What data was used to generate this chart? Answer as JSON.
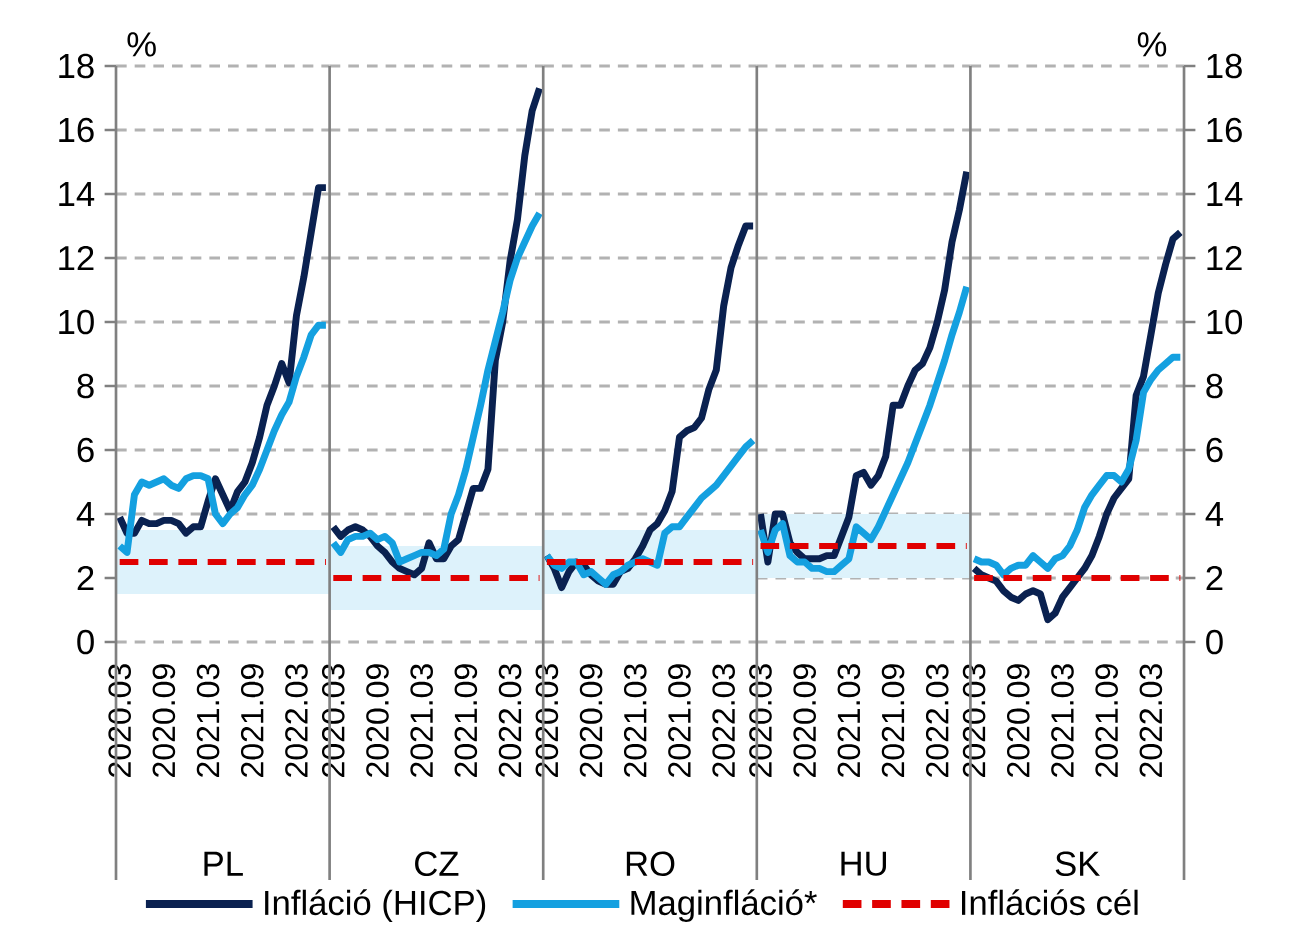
{
  "chart_data": [
    {
      "type": "line",
      "xlabel": "PL",
      "ylabel": "%",
      "legend": "bottom",
      "grid": "y",
      "ylim": [
        0,
        18
      ],
      "yticks": [
        0,
        2,
        4,
        6,
        8,
        10,
        12,
        14,
        16,
        18
      ],
      "categories": [
        "2020.03",
        null,
        null,
        null,
        null,
        null,
        "2020.09",
        null,
        null,
        null,
        null,
        null,
        "2021.03",
        null,
        null,
        null,
        null,
        null,
        "2021.09",
        null,
        null,
        null,
        null,
        null,
        "2022.03",
        null,
        null,
        null,
        null
      ],
      "bands": [
        {
          "axis": "y",
          "from": 1.5,
          "to": 3.5,
          "color": "#ddf2fb"
        }
      ],
      "series": [
        {
          "name": "Infláció (HICP)",
          "color": "#0a2150",
          "values": [
            3.9,
            3.4,
            3.4,
            3.8,
            3.7,
            3.7,
            3.8,
            3.8,
            3.7,
            3.4,
            3.6,
            3.6,
            4.4,
            5.1,
            4.6,
            4.1,
            4.7,
            5.0,
            5.6,
            6.4,
            7.4,
            8.0,
            8.7,
            8.1,
            10.2,
            11.4,
            12.8,
            14.2,
            14.2
          ]
        },
        {
          "name": "Maginfláció*",
          "color": "#14a0e0",
          "values": [
            3.0,
            2.8,
            4.6,
            5.0,
            4.9,
            5.0,
            5.1,
            4.9,
            4.8,
            5.1,
            5.2,
            5.2,
            5.1,
            4.0,
            3.7,
            4.0,
            4.2,
            4.6,
            4.9,
            5.4,
            6.0,
            6.6,
            7.1,
            7.5,
            8.3,
            8.9,
            9.6,
            9.9,
            9.9
          ]
        },
        {
          "name": "Inflációs cél",
          "color": "#e00000",
          "line_style": "dashed",
          "values": [
            2.5,
            2.5,
            2.5,
            2.5,
            2.5,
            2.5,
            2.5,
            2.5,
            2.5,
            2.5,
            2.5,
            2.5,
            2.5,
            2.5,
            2.5,
            2.5,
            2.5,
            2.5,
            2.5,
            2.5,
            2.5,
            2.5,
            2.5,
            2.5,
            2.5,
            2.5,
            2.5,
            2.5,
            2.5
          ]
        }
      ]
    },
    {
      "type": "line",
      "xlabel": "CZ",
      "grid": "y",
      "tick_labels": "x",
      "ylim": [
        0,
        18
      ],
      "yticks": [
        0,
        2,
        4,
        6,
        8,
        10,
        12,
        14,
        16,
        18
      ],
      "categories": [
        "2020.03",
        null,
        null,
        null,
        null,
        null,
        "2020.09",
        null,
        null,
        null,
        null,
        null,
        "2021.03",
        null,
        null,
        null,
        null,
        null,
        "2021.09",
        null,
        null,
        null,
        null,
        null,
        "2022.03",
        null,
        null,
        null,
        null
      ],
      "bands": [
        {
          "axis": "y",
          "from": 1,
          "to": 3,
          "color": "#ddf2fb"
        }
      ],
      "series": [
        {
          "color": "#0a2150",
          "values": [
            3.6,
            3.3,
            3.5,
            3.6,
            3.5,
            3.3,
            3.0,
            2.8,
            2.5,
            2.3,
            2.2,
            2.1,
            2.3,
            3.1,
            2.6,
            2.6,
            3.0,
            3.2,
            4.0,
            4.8,
            4.8,
            5.4,
            8.8,
            10.0,
            11.9,
            13.2,
            15.2,
            16.6,
            17.3
          ]
        },
        {
          "color": "#14a0e0",
          "values": [
            3.1,
            2.8,
            3.2,
            3.3,
            3.3,
            3.4,
            3.2,
            3.3,
            3.1,
            2.5,
            2.6,
            2.7,
            2.8,
            2.8,
            2.7,
            2.9,
            4.0,
            4.6,
            5.4,
            6.4,
            7.4,
            8.5,
            9.4,
            10.3,
            11.3,
            12.0,
            12.5,
            13.0,
            13.4
          ]
        },
        {
          "color": "#e00000",
          "line_style": "dashed",
          "values": [
            2,
            2,
            2,
            2,
            2,
            2,
            2,
            2,
            2,
            2,
            2,
            2,
            2,
            2,
            2,
            2,
            2,
            2,
            2,
            2,
            2,
            2,
            2,
            2,
            2,
            2,
            2,
            2,
            2
          ]
        }
      ]
    },
    {
      "type": "line",
      "xlabel": "RO",
      "grid": "y",
      "tick_labels": "x",
      "ylim": [
        0,
        18
      ],
      "yticks": [
        0,
        2,
        4,
        6,
        8,
        10,
        12,
        14,
        16,
        18
      ],
      "categories": [
        "2020.03",
        null,
        null,
        null,
        null,
        null,
        "2020.09",
        null,
        null,
        null,
        null,
        null,
        "2021.03",
        null,
        null,
        null,
        null,
        null,
        "2021.09",
        null,
        null,
        null,
        null,
        null,
        "2022.03",
        null,
        null,
        null,
        null
      ],
      "bands": [
        {
          "axis": "y",
          "from": 1.5,
          "to": 3.5,
          "color": "#ddf2fb"
        }
      ],
      "series": [
        {
          "color": "#0a2150",
          "values": [
            2.7,
            2.3,
            1.7,
            2.2,
            2.5,
            2.4,
            2.1,
            1.9,
            1.8,
            1.8,
            2.2,
            2.3,
            2.6,
            3.0,
            3.5,
            3.7,
            4.1,
            4.7,
            6.4,
            6.6,
            6.7,
            7.0,
            7.9,
            8.5,
            10.5,
            11.7,
            12.4,
            13.0,
            13.0
          ]
        },
        {
          "color": "#14a0e0",
          "values": [
            2.7,
            2.4,
            2.3,
            2.5,
            2.5,
            2.1,
            2.2,
            2.0,
            1.8,
            2.1,
            2.2,
            2.4,
            2.5,
            2.6,
            2.5,
            2.4,
            3.4,
            3.6,
            3.6,
            3.9,
            4.2,
            4.5,
            4.7,
            4.9,
            5.2,
            5.5,
            5.8,
            6.1,
            6.3
          ]
        },
        {
          "color": "#e00000",
          "line_style": "dashed",
          "values": [
            2.5,
            2.5,
            2.5,
            2.5,
            2.5,
            2.5,
            2.5,
            2.5,
            2.5,
            2.5,
            2.5,
            2.5,
            2.5,
            2.5,
            2.5,
            2.5,
            2.5,
            2.5,
            2.5,
            2.5,
            2.5,
            2.5,
            2.5,
            2.5,
            2.5,
            2.5,
            2.5,
            2.5,
            2.5
          ]
        }
      ]
    },
    {
      "type": "line",
      "xlabel": "HU",
      "grid": "y",
      "tick_labels": "x",
      "ylim": [
        0,
        18
      ],
      "yticks": [
        0,
        2,
        4,
        6,
        8,
        10,
        12,
        14,
        16,
        18
      ],
      "categories": [
        "2020.03",
        null,
        null,
        null,
        null,
        null,
        "2020.09",
        null,
        null,
        null,
        null,
        null,
        "2021.03",
        null,
        null,
        null,
        null,
        null,
        "2021.09",
        null,
        null,
        null,
        null,
        null,
        "2022.03",
        null,
        null,
        null,
        null
      ],
      "bands": [
        {
          "axis": "y",
          "from": 2,
          "to": 4,
          "color": "#ddf2fb"
        }
      ],
      "series": [
        {
          "color": "#0a2150",
          "values": [
            4.0,
            2.5,
            4.0,
            4.0,
            3.1,
            2.8,
            2.6,
            2.6,
            2.6,
            2.7,
            2.7,
            3.3,
            3.9,
            5.2,
            5.3,
            4.9,
            5.2,
            5.8,
            7.4,
            7.4,
            8.0,
            8.5,
            8.7,
            9.2,
            10.0,
            11.0,
            12.5,
            13.5,
            14.7
          ]
        },
        {
          "color": "#14a0e0",
          "values": [
            3.5,
            2.8,
            3.5,
            3.7,
            2.7,
            2.5,
            2.5,
            2.3,
            2.3,
            2.2,
            2.2,
            2.4,
            2.6,
            3.6,
            3.4,
            3.2,
            3.6,
            4.1,
            4.6,
            5.1,
            5.6,
            6.2,
            6.8,
            7.4,
            8.1,
            8.8,
            9.6,
            10.3,
            11.1
          ]
        },
        {
          "color": "#e00000",
          "line_style": "dashed",
          "values": [
            3,
            3,
            3,
            3,
            3,
            3,
            3,
            3,
            3,
            3,
            3,
            3,
            3,
            3,
            3,
            3,
            3,
            3,
            3,
            3,
            3,
            3,
            3,
            3,
            3,
            3,
            3,
            3,
            3
          ]
        }
      ]
    },
    {
      "type": "line",
      "xlabel": "SK",
      "ylabel": "%",
      "grid": "y",
      "ylim": [
        0,
        18
      ],
      "yticks": [
        0,
        2,
        4,
        6,
        8,
        10,
        12,
        14,
        16,
        18
      ],
      "categories": [
        "2020.03",
        null,
        null,
        null,
        null,
        null,
        "2020.09",
        null,
        null,
        null,
        null,
        null,
        "2021.03",
        null,
        null,
        null,
        null,
        null,
        "2021.09",
        null,
        null,
        null,
        null,
        null,
        "2022.03",
        null,
        null,
        null,
        null
      ],
      "series": [
        {
          "color": "#0a2150",
          "values": [
            2.3,
            2.1,
            2.0,
            1.9,
            1.6,
            1.4,
            1.3,
            1.5,
            1.6,
            1.5,
            0.7,
            0.9,
            1.4,
            1.7,
            2.0,
            2.3,
            2.7,
            3.3,
            4.0,
            4.5,
            4.8,
            5.1,
            7.7,
            8.3,
            9.6,
            10.9,
            11.8,
            12.6,
            12.8
          ]
        },
        {
          "color": "#14a0e0",
          "values": [
            2.6,
            2.5,
            2.5,
            2.4,
            2.1,
            2.3,
            2.4,
            2.4,
            2.7,
            2.5,
            2.3,
            2.6,
            2.7,
            3.0,
            3.5,
            4.2,
            4.6,
            4.9,
            5.2,
            5.2,
            5.0,
            5.4,
            6.3,
            7.8,
            8.2,
            8.5,
            8.7,
            8.9,
            8.9
          ]
        },
        {
          "color": "#e00000",
          "line_style": "dashed",
          "values": [
            2,
            2,
            2,
            2,
            2,
            2,
            2,
            2,
            2,
            2,
            2,
            2,
            2,
            2,
            2,
            2,
            2,
            2,
            2,
            2,
            2,
            2,
            2,
            2,
            2,
            2,
            2,
            2,
            2
          ]
        }
      ]
    }
  ]
}
